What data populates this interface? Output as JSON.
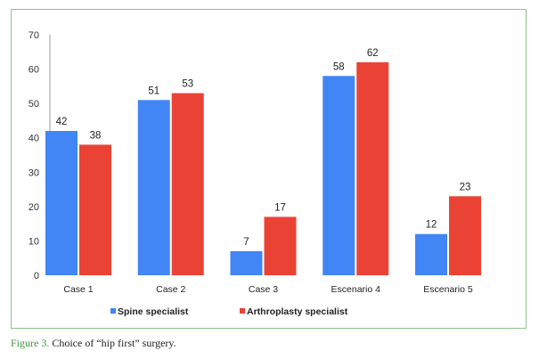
{
  "chart_data": {
    "type": "bar",
    "categories": [
      "Case 1",
      "Case 2",
      "Case 3",
      "Escenario 4",
      "Escenario 5"
    ],
    "series": [
      {
        "name": "Spine specialist",
        "values": [
          42,
          51,
          7,
          58,
          12
        ],
        "color": "#4285f4"
      },
      {
        "name": "Arthroplasty specialist",
        "values": [
          38,
          53,
          17,
          62,
          23
        ],
        "color": "#ea4335"
      }
    ],
    "yticks": [
      0,
      10,
      20,
      30,
      40,
      50,
      60,
      70
    ],
    "ylim": [
      0,
      70
    ],
    "legend": "bottom",
    "grid": false
  },
  "caption": {
    "label": "Figure 3.",
    "text": " Choice of “hip first” surgery."
  }
}
